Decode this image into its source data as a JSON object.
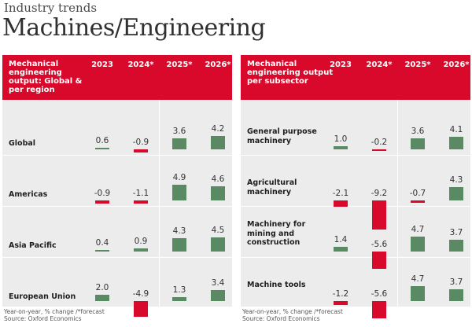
{
  "header": {
    "section": "Industry trends",
    "title": "Machines/Engineering"
  },
  "colors": {
    "header_red": "#d8092b",
    "positive_green": "#5a8a64",
    "negative_red": "#d8092b",
    "panel_bg": "#ececec"
  },
  "footnote": {
    "line1": "Year-on-year, % change /*forecast",
    "line2": "Source: Oxford Economics"
  },
  "chart_data": [
    {
      "type": "table",
      "title": "Mechanical engineering output: Global & per region",
      "years": [
        "2023",
        "2024*",
        "2025*",
        "2026*"
      ],
      "rows": [
        {
          "label": "Global",
          "values": [
            0.6,
            -0.9,
            3.6,
            4.2
          ],
          "labels": [
            "0.6",
            "-0.9",
            "3.6",
            "4.2"
          ]
        },
        {
          "label": "Americas",
          "values": [
            -0.9,
            -1.1,
            4.9,
            4.6
          ],
          "labels": [
            "-0.9",
            "-1.1",
            "4.9",
            "4.6"
          ]
        },
        {
          "label": "Asia Pacific",
          "values": [
            0.4,
            0.9,
            4.3,
            4.5
          ],
          "labels": [
            "0.4",
            "0.9",
            "4.3",
            "4.5"
          ]
        },
        {
          "label": "European Union",
          "values": [
            2.0,
            -4.9,
            1.3,
            3.4
          ],
          "labels": [
            "2.0",
            "-4.9",
            "1.3",
            "3.4"
          ]
        }
      ]
    },
    {
      "type": "table",
      "title": "Mechanical engineering output per subsector",
      "years": [
        "2023",
        "2024*",
        "2025*",
        "2026*"
      ],
      "rows": [
        {
          "label": "General purpose machinery",
          "values": [
            1.0,
            -0.2,
            3.6,
            4.1
          ],
          "labels": [
            "1.0",
            "-0.2",
            "3.6",
            "4.1"
          ]
        },
        {
          "label": "Agricultural machinery",
          "values": [
            -2.1,
            -9.2,
            -0.7,
            4.3
          ],
          "labels": [
            "-2.1",
            "-9.2",
            "-0.7",
            "4.3"
          ]
        },
        {
          "label": "Machinery for mining and construction",
          "values": [
            1.4,
            -5.6,
            4.7,
            3.7
          ],
          "labels": [
            "1.4",
            "-5.6",
            "4.7",
            "3.7"
          ]
        },
        {
          "label": "Machine tools",
          "values": [
            -1.2,
            -5.6,
            4.7,
            3.7
          ],
          "labels": [
            "-1.2",
            "-5.6",
            "4.7",
            "3.7"
          ]
        }
      ]
    }
  ]
}
